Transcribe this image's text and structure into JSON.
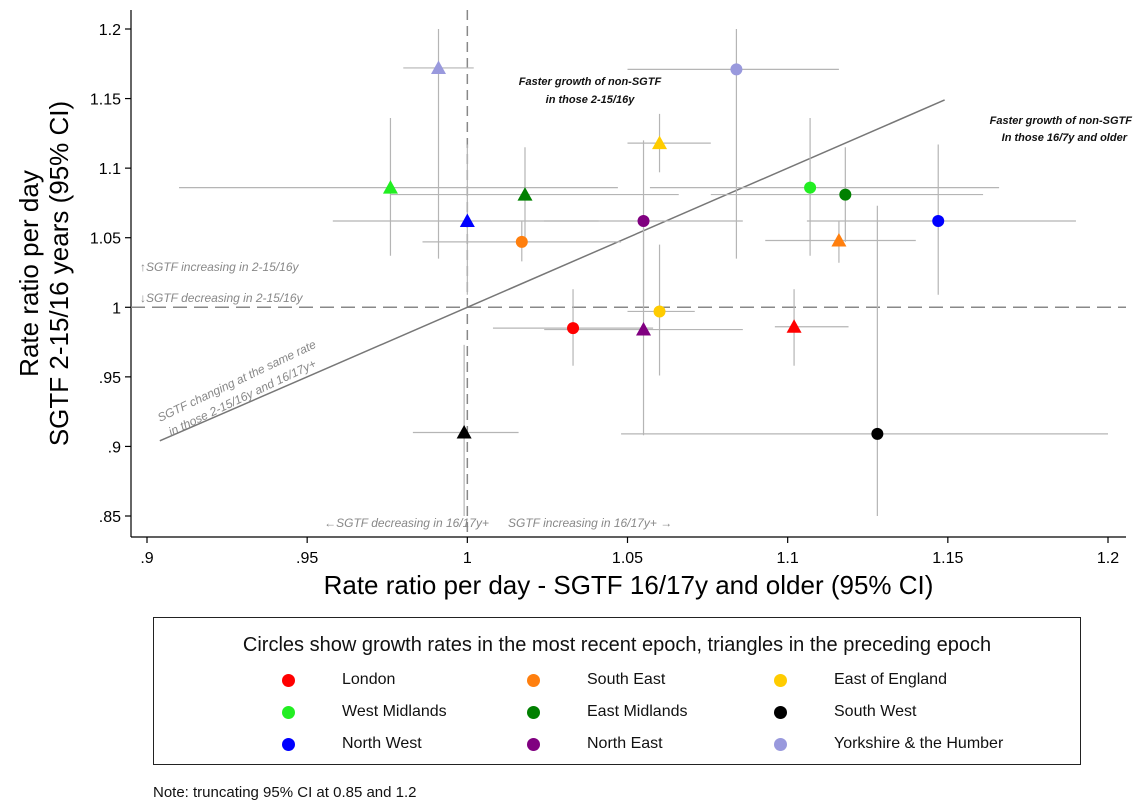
{
  "chart_data": {
    "type": "scatter",
    "title": "",
    "xlabel": "Rate ratio per day - SGTF 16/17y and older (95% CI)",
    "ylabel_lines": [
      "Rate ratio per day",
      "SGTF 2-15/16 years (95% CI)"
    ],
    "xlim": [
      0.9,
      1.2
    ],
    "ylim": [
      0.85,
      1.2
    ],
    "xticks": [
      0.9,
      0.95,
      1,
      1.05,
      1.1,
      1.15,
      1.2
    ],
    "xtick_labels": [
      ".9",
      ".95",
      "1",
      "1.05",
      "1.1",
      "1.15",
      "1.2"
    ],
    "yticks": [
      0.85,
      0.9,
      0.95,
      1,
      1.05,
      1.1,
      1.15,
      1.2
    ],
    "ytick_labels": [
      ".85",
      ".9",
      ".95",
      "1",
      "1.05",
      "1.1",
      "1.15",
      "1.2"
    ],
    "grid": false,
    "reference_lines": {
      "vertical_x": 1,
      "horizontal_y": 1,
      "diagonal": [
        [
          0.904,
          0.904
        ],
        [
          1.149,
          1.149
        ]
      ]
    },
    "annotations": {
      "above_hline": "↑SGTF increasing in 2-15/16y",
      "below_hline": "↓SGTF decreasing in 2-15/16y",
      "left_of_vline": "←SGTF decreasing in 16/17y+",
      "right_of_vline": "SGTF increasing in 16/17y+ →",
      "diagonal_line1": "SGTF changing at the same rate",
      "diagonal_line2": "in those 2-15/16y and 16/17y+",
      "upper_region_line1": "Faster growth of non-SGTF",
      "upper_region_line2": "in those 2-15/16y",
      "lower_region_line1": "Faster growth of non-SGTF",
      "lower_region_line2": "In those 16/7y and older"
    },
    "legend_title": "Circles show growth rates in the most recent epoch, triangles in the preceding epoch",
    "legend_placement": "bottom",
    "series": [
      {
        "name": "London",
        "color": "#ff0000",
        "circle": {
          "x": 1.033,
          "y": 0.985,
          "x_ci": [
            1.008,
            1.058
          ],
          "y_ci": [
            0.958,
            1.013
          ]
        },
        "triangle": {
          "x": 1.102,
          "y": 0.986,
          "x_ci": [
            1.096,
            1.119
          ],
          "y_ci": [
            0.958,
            1.013
          ]
        }
      },
      {
        "name": "South East",
        "color": "#ff7f0e",
        "circle": {
          "x": 1.017,
          "y": 1.047,
          "x_ci": [
            0.986,
            1.048
          ],
          "y_ci": [
            1.033,
            1.062
          ]
        },
        "triangle": {
          "x": 1.116,
          "y": 1.048,
          "x_ci": [
            1.093,
            1.14
          ],
          "y_ci": [
            1.032,
            1.062
          ]
        }
      },
      {
        "name": "East of England",
        "color": "#ffcc00",
        "circle": {
          "x": 1.06,
          "y": 0.997,
          "x_ci": [
            1.05,
            1.071
          ],
          "y_ci": [
            0.951,
            1.045
          ]
        },
        "triangle": {
          "x": 1.06,
          "y": 1.118,
          "x_ci": [
            1.05,
            1.076
          ],
          "y_ci": [
            1.097,
            1.139
          ]
        }
      },
      {
        "name": "West Midlands",
        "color": "#22ee22",
        "circle": {
          "x": 1.107,
          "y": 1.086,
          "x_ci": [
            1.057,
            1.166
          ],
          "y_ci": [
            1.037,
            1.136
          ]
        },
        "triangle": {
          "x": 0.976,
          "y": 1.086,
          "x_ci": [
            0.91,
            1.047
          ],
          "y_ci": [
            1.037,
            1.136
          ]
        }
      },
      {
        "name": "East Midlands",
        "color": "#008000",
        "circle": {
          "x": 1.118,
          "y": 1.081,
          "x_ci": [
            1.076,
            1.161
          ],
          "y_ci": [
            1.047,
            1.115
          ]
        },
        "triangle": {
          "x": 1.018,
          "y": 1.081,
          "x_ci": [
            0.976,
            1.066
          ],
          "y_ci": [
            1.047,
            1.115
          ]
        }
      },
      {
        "name": "South West",
        "color": "#000000",
        "circle": {
          "x": 1.128,
          "y": 0.909,
          "x_ci": [
            1.048,
            1.2
          ],
          "y_ci": [
            0.85,
            1.073
          ]
        },
        "triangle": {
          "x": 0.999,
          "y": 0.91,
          "x_ci": [
            0.983,
            1.016
          ],
          "y_ci": [
            0.85,
            0.973
          ]
        }
      },
      {
        "name": "North West",
        "color": "#0000ff",
        "circle": {
          "x": 1.147,
          "y": 1.062,
          "x_ci": [
            1.106,
            1.19
          ],
          "y_ci": [
            1.009,
            1.117
          ]
        },
        "triangle": {
          "x": 1.0,
          "y": 1.062,
          "x_ci": [
            0.958,
            1.041
          ],
          "y_ci": [
            1.009,
            1.117
          ]
        }
      },
      {
        "name": "North East",
        "color": "#800080",
        "circle": {
          "x": 1.055,
          "y": 1.062,
          "x_ci": [
            1.024,
            1.086
          ],
          "y_ci": [
            1.003,
            1.12
          ]
        },
        "triangle": {
          "x": 1.055,
          "y": 0.984,
          "x_ci": [
            1.024,
            1.086
          ],
          "y_ci": [
            0.908,
            1.06
          ]
        }
      },
      {
        "name": "Yorkshire & the Humber",
        "color": "#9999dd",
        "circle": {
          "x": 1.084,
          "y": 1.171,
          "x_ci": [
            1.05,
            1.116
          ],
          "y_ci": [
            1.035,
            1.2
          ]
        },
        "triangle": {
          "x": 0.991,
          "y": 1.172,
          "x_ci": [
            0.98,
            1.002
          ],
          "y_ci": [
            1.035,
            1.2
          ]
        }
      }
    ]
  },
  "legend_layout_rows": [
    [
      "London",
      "South East",
      "East of England"
    ],
    [
      "West Midlands",
      "East Midlands",
      "South West"
    ],
    [
      "North West",
      "North East",
      "Yorkshire & the Humber"
    ]
  ],
  "note": "Note: truncating 95% CI at 0.85 and 1.2"
}
